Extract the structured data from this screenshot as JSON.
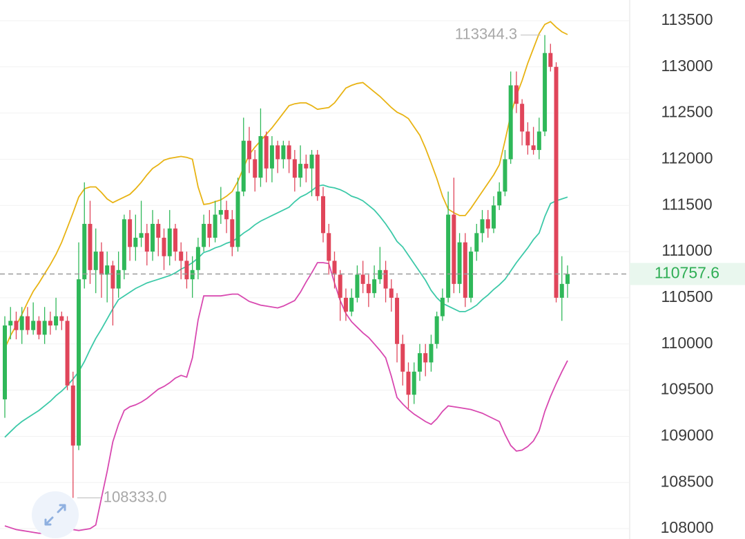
{
  "chart_data": {
    "type": "candlestick",
    "ylim": [
      107888,
      113724
    ],
    "yticks": [
      108000,
      108500,
      109000,
      109500,
      110000,
      110500,
      111000,
      111500,
      112000,
      112500,
      113000,
      113500
    ],
    "grid": true,
    "up_color": "#2fb859",
    "down_color": "#e0455a",
    "last_price": 110757.6,
    "high_label": "113344.3",
    "low_label": "108333.0",
    "candles": [
      [
        109400,
        110300,
        109200,
        110200
      ],
      [
        110200,
        110400,
        110050,
        110250
      ],
      [
        110250,
        110350,
        110050,
        110150
      ],
      [
        110150,
        110400,
        110000,
        110300
      ],
      [
        110300,
        110400,
        110100,
        110150
      ],
      [
        110150,
        110450,
        110100,
        110250
      ],
      [
        110250,
        110300,
        110050,
        110100
      ],
      [
        110100,
        110400,
        110000,
        110250
      ],
      [
        110250,
        110350,
        110100,
        110200
      ],
      [
        110200,
        110500,
        110150,
        110300
      ],
      [
        110300,
        110350,
        110150,
        110250
      ],
      [
        110250,
        110300,
        109500,
        109550
      ],
      [
        109550,
        109700,
        108333,
        108900
      ],
      [
        108900,
        111100,
        108850,
        110700
      ],
      [
        110700,
        111750,
        110600,
        111300
      ],
      [
        111300,
        111550,
        110650,
        110800
      ],
      [
        110800,
        111250,
        110550,
        111000
      ],
      [
        111000,
        111100,
        110500,
        110750
      ],
      [
        110750,
        111000,
        110450,
        110850
      ],
      [
        110850,
        110900,
        110200,
        110600
      ],
      [
        110600,
        111000,
        110500,
        110800
      ],
      [
        110800,
        111400,
        110700,
        111350
      ],
      [
        111350,
        111450,
        110900,
        111050
      ],
      [
        111050,
        111400,
        110900,
        111150
      ],
      [
        111150,
        111550,
        111050,
        111200
      ],
      [
        111200,
        111300,
        110850,
        111000
      ],
      [
        111000,
        111450,
        110900,
        111300
      ],
      [
        111300,
        111350,
        110950,
        111150
      ],
      [
        111150,
        111250,
        110800,
        110950
      ],
      [
        110950,
        111450,
        110850,
        111250
      ],
      [
        111250,
        111300,
        110900,
        111000
      ],
      [
        111000,
        111100,
        110700,
        110900
      ],
      [
        110900,
        111000,
        110600,
        110700
      ],
      [
        110700,
        110950,
        110500,
        110800
      ],
      [
        110800,
        111150,
        110700,
        111050
      ],
      [
        111050,
        111400,
        111000,
        111300
      ],
      [
        111300,
        111450,
        111050,
        111150
      ],
      [
        111150,
        111550,
        111100,
        111400
      ],
      [
        111400,
        111700,
        111300,
        111450
      ],
      [
        111450,
        111550,
        111200,
        111350
      ],
      [
        111350,
        111450,
        110950,
        111050
      ],
      [
        111050,
        111800,
        111000,
        111650
      ],
      [
        111650,
        112450,
        111600,
        112200
      ],
      [
        112200,
        112350,
        111850,
        112000
      ],
      [
        112000,
        112100,
        111650,
        111800
      ],
      [
        111800,
        112550,
        111700,
        112250
      ],
      [
        112250,
        112300,
        111750,
        111900
      ],
      [
        111900,
        112250,
        111750,
        112150
      ],
      [
        112150,
        112200,
        111850,
        112000
      ],
      [
        112000,
        112200,
        111900,
        112150
      ],
      [
        112150,
        112200,
        111850,
        112000
      ],
      [
        112000,
        112100,
        111650,
        111800
      ],
      [
        111800,
        112150,
        111700,
        111950
      ],
      [
        111950,
        112050,
        111750,
        111900
      ],
      [
        111900,
        112100,
        111600,
        112050
      ],
      [
        112050,
        112100,
        111550,
        111600
      ],
      [
        111600,
        111700,
        111100,
        111200
      ],
      [
        111200,
        111300,
        110750,
        110900
      ],
      [
        110900,
        111000,
        110600,
        110750
      ],
      [
        110750,
        110800,
        110250,
        110500
      ],
      [
        110500,
        110600,
        110250,
        110350
      ],
      [
        110350,
        110600,
        110300,
        110500
      ],
      [
        110500,
        110850,
        110450,
        110750
      ],
      [
        110750,
        110900,
        110550,
        110650
      ],
      [
        110650,
        110750,
        110400,
        110550
      ],
      [
        110550,
        110850,
        110500,
        110700
      ],
      [
        110700,
        111050,
        110650,
        110800
      ],
      [
        110800,
        110900,
        110450,
        110600
      ],
      [
        110600,
        110700,
        110350,
        110500
      ],
      [
        110500,
        110550,
        109800,
        110000
      ],
      [
        110000,
        110100,
        109550,
        109700
      ],
      [
        109700,
        109800,
        109300,
        109450
      ],
      [
        109450,
        109800,
        109350,
        109700
      ],
      [
        109700,
        110000,
        109600,
        109900
      ],
      [
        109900,
        110000,
        109650,
        109800
      ],
      [
        109800,
        110100,
        109700,
        110000
      ],
      [
        110000,
        110350,
        109950,
        110300
      ],
      [
        110300,
        110600,
        110250,
        110500
      ],
      [
        110500,
        111650,
        110450,
        111400
      ],
      [
        111400,
        111800,
        110550,
        110650
      ],
      [
        110650,
        111200,
        110550,
        111100
      ],
      [
        111100,
        111200,
        110400,
        110500
      ],
      [
        110500,
        111050,
        110450,
        111000
      ],
      [
        111000,
        111300,
        110900,
        111200
      ],
      [
        111200,
        111450,
        111100,
        111350
      ],
      [
        111350,
        111450,
        111150,
        111250
      ],
      [
        111250,
        111600,
        111200,
        111500
      ],
      [
        111500,
        111750,
        111450,
        111650
      ],
      [
        111650,
        112100,
        111600,
        112000
      ],
      [
        112000,
        112950,
        111950,
        112800
      ],
      [
        112800,
        112950,
        112500,
        112600
      ],
      [
        112600,
        112650,
        112150,
        112300
      ],
      [
        112300,
        112400,
        112050,
        112150
      ],
      [
        112150,
        112350,
        112050,
        112100
      ],
      [
        112100,
        112450,
        112000,
        112300
      ],
      [
        112300,
        113344.3,
        112250,
        113150
      ],
      [
        113150,
        113250,
        112950,
        113000
      ],
      [
        113000,
        113050,
        110450,
        110500
      ],
      [
        110500,
        110950,
        110250,
        110650
      ],
      [
        110650,
        110850,
        110500,
        110757.6
      ]
    ],
    "lines": [
      {
        "color": "#e8b313",
        "values": [
          109950,
          110090,
          110200,
          110320,
          110450,
          110570,
          110660,
          110760,
          110860,
          110970,
          111100,
          111260,
          111420,
          111590,
          111680,
          111700,
          111700,
          111640,
          111570,
          111530,
          111560,
          111590,
          111620,
          111680,
          111750,
          111830,
          111900,
          111940,
          111990,
          112010,
          112020,
          112030,
          112020,
          112000,
          111700,
          111510,
          111520,
          111540,
          111560,
          111600,
          111650,
          111760,
          111910,
          112050,
          112130,
          112200,
          112270,
          112340,
          112420,
          112500,
          112580,
          112600,
          112610,
          112610,
          112580,
          112540,
          112550,
          112560,
          112610,
          112690,
          112770,
          112800,
          112820,
          112830,
          112780,
          112730,
          112680,
          112620,
          112560,
          112510,
          112480,
          112440,
          112350,
          112260,
          112120,
          111960,
          111790,
          111600,
          111460,
          111420,
          111390,
          111390,
          111470,
          111560,
          111650,
          111740,
          111830,
          111940,
          112200,
          112480,
          112690,
          112850,
          113040,
          113200,
          113360,
          113460,
          113490,
          113430,
          113380,
          113350
        ]
      },
      {
        "color": "#3cc9a8",
        "values": [
          108990,
          109050,
          109110,
          109160,
          109200,
          109240,
          109280,
          109330,
          109380,
          109440,
          109490,
          109550,
          109620,
          109700,
          109810,
          109940,
          110060,
          110160,
          110270,
          110380,
          110480,
          110520,
          110560,
          110600,
          110630,
          110660,
          110680,
          110700,
          110720,
          110740,
          110770,
          110810,
          110840,
          110880,
          110930,
          110990,
          111010,
          111040,
          111060,
          111090,
          111110,
          111150,
          111200,
          111240,
          111290,
          111330,
          111360,
          111390,
          111420,
          111450,
          111480,
          111540,
          111590,
          111620,
          111660,
          111710,
          111720,
          111700,
          111690,
          111670,
          111640,
          111600,
          111580,
          111550,
          111500,
          111450,
          111380,
          111300,
          111210,
          111110,
          111050,
          110960,
          110870,
          110780,
          110690,
          110580,
          110500,
          110440,
          110410,
          110380,
          110350,
          110350,
          110380,
          110420,
          110480,
          110530,
          110590,
          110640,
          110700,
          110790,
          110880,
          110960,
          111040,
          111130,
          111200,
          111380,
          111520,
          111550,
          111570,
          111590
        ]
      },
      {
        "color": "#d848b0",
        "values": [
          108030,
          108010,
          107990,
          107980,
          107970,
          107960,
          107950,
          107950,
          107970,
          108000,
          108010,
          108000,
          107990,
          107980,
          107990,
          108000,
          108040,
          108330,
          108620,
          108940,
          109130,
          109280,
          109320,
          109340,
          109370,
          109410,
          109460,
          109510,
          109540,
          109580,
          109630,
          109660,
          109640,
          109850,
          110260,
          110520,
          110520,
          110520,
          110520,
          110530,
          110540,
          110540,
          110500,
          110460,
          110440,
          110420,
          110410,
          110400,
          110390,
          110410,
          110440,
          110470,
          110560,
          110670,
          110770,
          110880,
          110880,
          110870,
          110660,
          110470,
          110330,
          110240,
          110180,
          110120,
          110070,
          110000,
          109930,
          109850,
          109650,
          109420,
          109350,
          109290,
          109240,
          109200,
          109160,
          109130,
          109190,
          109270,
          109330,
          109320,
          109310,
          109300,
          109290,
          109270,
          109250,
          109220,
          109190,
          109160,
          109020,
          108900,
          108840,
          108850,
          108890,
          108950,
          109060,
          109270,
          109430,
          109570,
          109700,
          109820
        ]
      }
    ]
  }
}
